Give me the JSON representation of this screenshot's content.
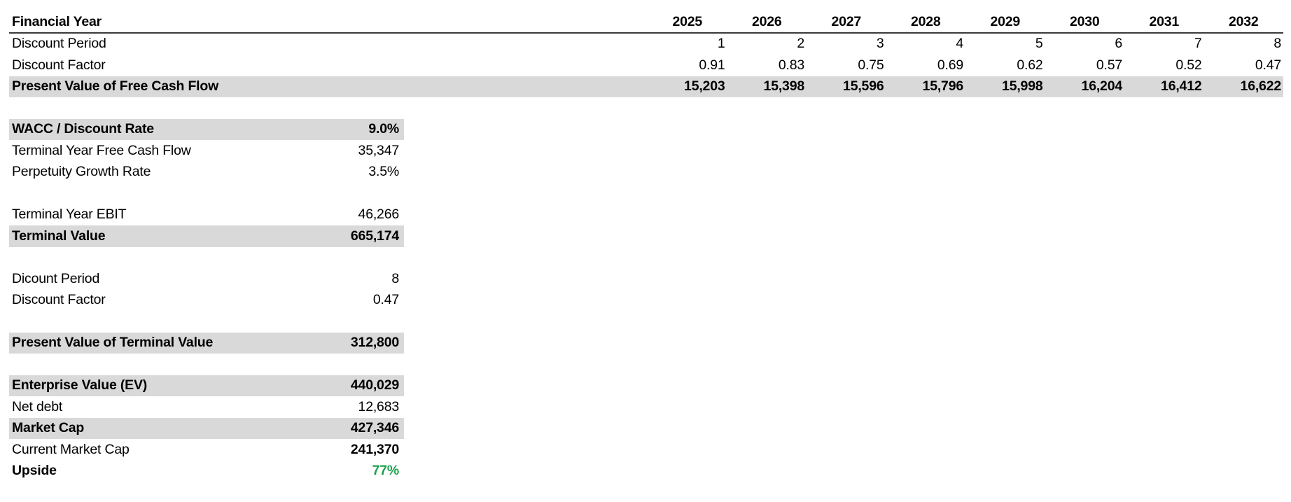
{
  "table": {
    "header_label": "Financial Year",
    "years": [
      "2025",
      "2026",
      "2027",
      "2028",
      "2029",
      "2030",
      "2031",
      "2032"
    ],
    "rows": [
      {
        "label": "Discount Period",
        "values": [
          "1",
          "2",
          "3",
          "4",
          "5",
          "6",
          "7",
          "8"
        ],
        "bold": false,
        "highlight": false
      },
      {
        "label": "Discount Factor",
        "values": [
          "0.91",
          "0.83",
          "0.75",
          "0.69",
          "0.62",
          "0.57",
          "0.52",
          "0.47"
        ],
        "bold": false,
        "highlight": false
      },
      {
        "label": "Present Value of Free Cash Flow",
        "values": [
          "15,203",
          "15,398",
          "15,596",
          "15,796",
          "15,998",
          "16,204",
          "16,412",
          "16,622"
        ],
        "bold": true,
        "highlight": true
      }
    ]
  },
  "summary": {
    "rows": [
      {
        "label": "WACC / Discount Rate",
        "value": "9.0%",
        "label_bold": true,
        "value_bold": true,
        "highlight": true
      },
      {
        "label": "Terminal Year Free Cash Flow",
        "value": "35,347"
      },
      {
        "label": "Perpetuity Growth Rate",
        "value": "3.5%"
      },
      {
        "blank": true
      },
      {
        "label": "Terminal Year EBIT",
        "value": "46,266"
      },
      {
        "label": "Terminal Value",
        "value": "665,174",
        "label_bold": true,
        "value_bold": true,
        "highlight": true
      },
      {
        "blank": true
      },
      {
        "label": "Dicount Period",
        "value": "8"
      },
      {
        "label": "Discount Factor",
        "value": "0.47"
      },
      {
        "blank": true
      },
      {
        "label": "Present Value of Terminal Value",
        "value": "312,800",
        "label_bold": true,
        "value_bold": true,
        "highlight": true
      },
      {
        "blank": true
      },
      {
        "label": "Enterprise Value (EV)",
        "value": "440,029",
        "label_bold": true,
        "value_bold": true,
        "highlight": true
      },
      {
        "label": "Net debt",
        "value": "12,683"
      },
      {
        "label": "Market Cap",
        "value": "427,346",
        "label_bold": true,
        "value_bold": true,
        "highlight": true
      },
      {
        "label": "Current Market Cap",
        "value": "241,370",
        "value_bold": true
      },
      {
        "label": "Upside",
        "value": "77%",
        "label_bold": true,
        "value_bold": true,
        "value_color": "green"
      }
    ]
  },
  "colors": {
    "highlight_bg": "#d9d9d9",
    "upside_green": "#1ca14b",
    "header_border": "#3a3a3a",
    "text": "#000000"
  }
}
